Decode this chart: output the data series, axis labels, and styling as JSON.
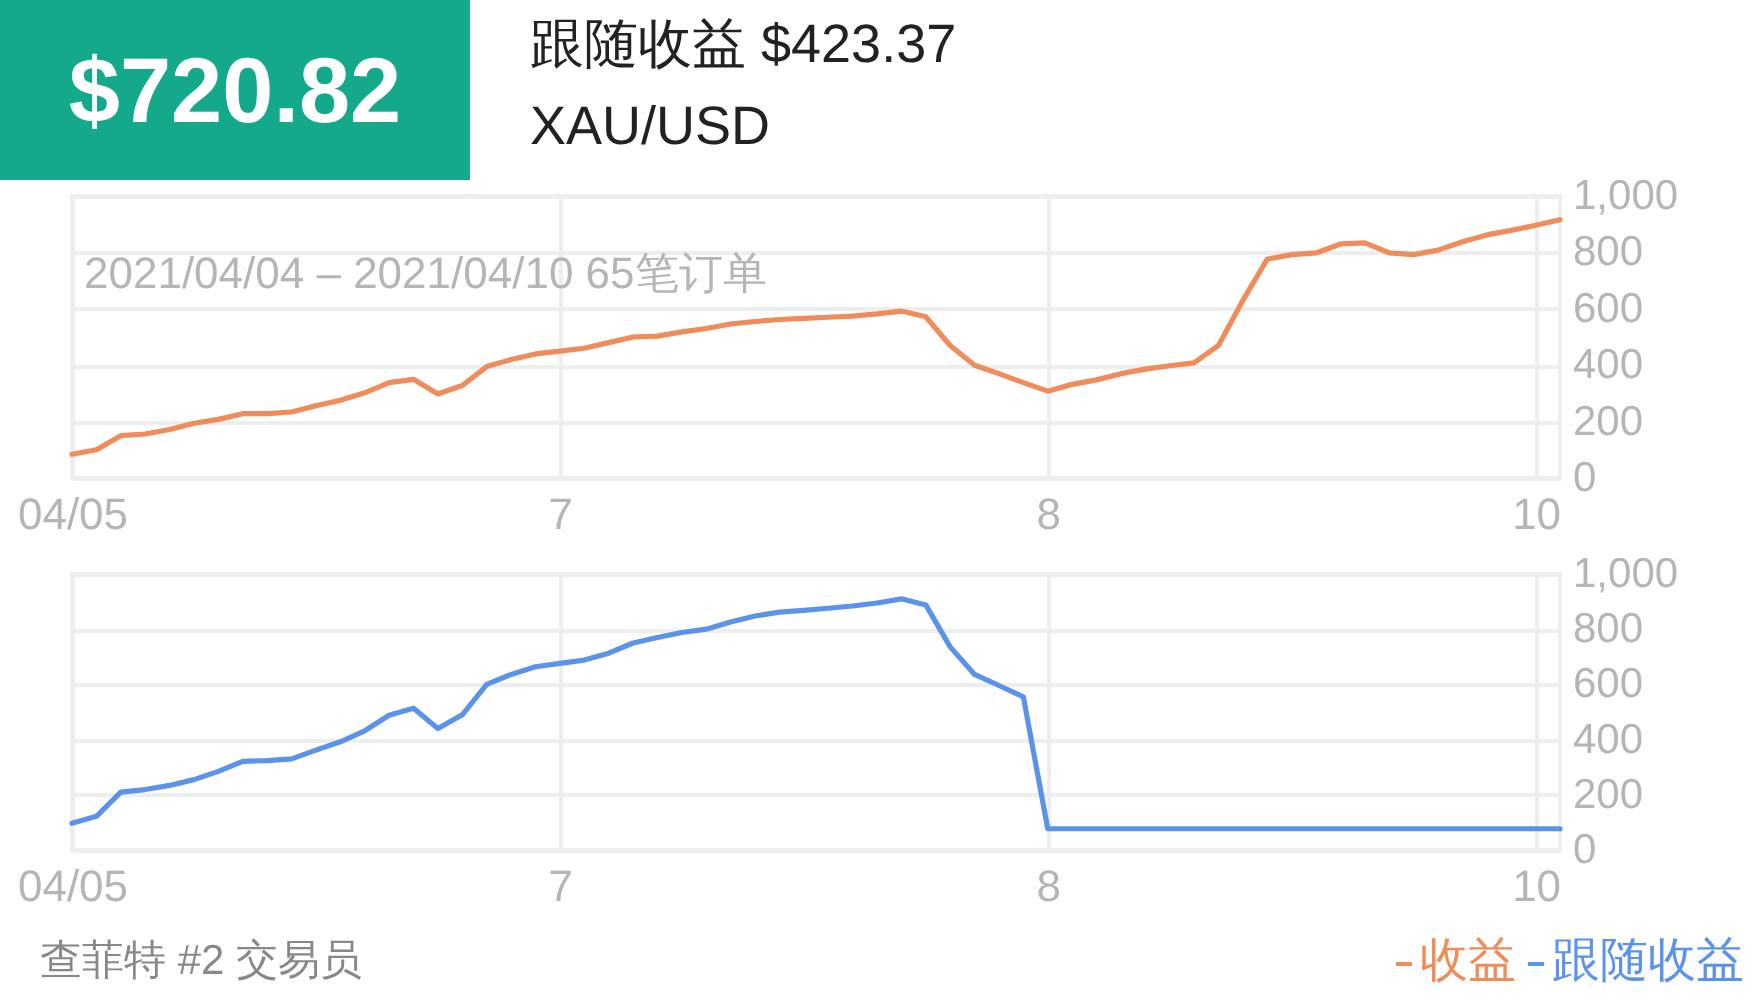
{
  "chart_data": [
    {
      "type": "line",
      "title": "$720.82",
      "subtitle": "跟随收益 $423.37",
      "annotations": [
        "XAU/USD",
        "2021/04/04 – 2021/04/10 65笔订单",
        "查菲特 #2 交易员"
      ],
      "categories": [
        "04/05",
        null,
        null,
        null,
        null,
        null,
        null,
        null,
        null,
        null,
        null,
        null,
        null,
        null,
        null,
        null,
        null,
        null,
        null,
        null,
        "7",
        null,
        null,
        null,
        null,
        null,
        null,
        null,
        null,
        null,
        null,
        null,
        null,
        null,
        null,
        null,
        null,
        null,
        null,
        null,
        "8",
        null,
        null,
        null,
        null,
        null,
        null,
        null,
        null,
        null,
        null,
        null,
        null,
        null,
        null,
        null,
        null,
        null,
        null,
        null,
        "10",
        null
      ],
      "series": [
        {
          "name": "收益",
          "color": "#f08c5a",
          "values": [
            84,
            100,
            150,
            156,
            172,
            194,
            208,
            228,
            228,
            234,
            256,
            276,
            302,
            338,
            350,
            298,
            328,
            395,
            420,
            440,
            450,
            460,
            480,
            500,
            503,
            518,
            530,
            546,
            555,
            562,
            566,
            570,
            574,
            582,
            592,
            572,
            470,
            400,
            370,
            338,
            308,
            332,
            348,
            370,
            386,
            398,
            408,
            470,
            630,
            776,
            792,
            798,
            830,
            834,
            798,
            792,
            808,
            838,
            862,
            878,
            896,
            916
          ]
        }
      ],
      "ylim": [
        0,
        1000
      ],
      "yticks": [
        0,
        200,
        400,
        600,
        800,
        {
          "value": 1000,
          "label": "1,000"
        }
      ],
      "grid": true,
      "legend": "bottom right",
      "marker": "none",
      "line_style": "solid"
    },
    {
      "type": "line",
      "categories": [
        "04/05",
        null,
        null,
        null,
        null,
        null,
        null,
        null,
        null,
        null,
        null,
        null,
        null,
        null,
        null,
        null,
        null,
        null,
        null,
        null,
        "7",
        null,
        null,
        null,
        null,
        null,
        null,
        null,
        null,
        null,
        null,
        null,
        null,
        null,
        null,
        null,
        null,
        null,
        null,
        null,
        "8",
        null,
        null,
        null,
        null,
        null,
        null,
        null,
        null,
        null,
        null,
        null,
        null,
        null,
        null,
        null,
        null,
        null,
        null,
        null,
        "10",
        null
      ],
      "series": [
        {
          "name": "跟随收益",
          "color": "#5b93ea",
          "values": [
            97,
            122,
            210,
            219,
            234,
            255,
            285,
            321,
            324,
            330,
            362,
            392,
            432,
            488,
            514,
            440,
            490,
            600,
            636,
            664,
            676,
            688,
            713,
            750,
            770,
            788,
            800,
            826,
            848,
            862,
            868,
            876,
            884,
            895,
            910,
            888,
            736,
            636,
            596,
            555,
            77,
            77,
            77,
            77,
            77,
            77,
            77,
            77,
            77,
            77,
            77,
            77,
            77,
            77,
            77,
            77,
            77,
            77,
            77,
            77,
            77,
            77
          ]
        }
      ],
      "ylim": [
        0,
        1000
      ],
      "yticks": [
        0,
        200,
        400,
        600,
        800,
        {
          "value": 1000,
          "label": "1,000"
        }
      ],
      "grid": true,
      "legend": "bottom right",
      "marker": "none",
      "line_style": "solid"
    }
  ]
}
